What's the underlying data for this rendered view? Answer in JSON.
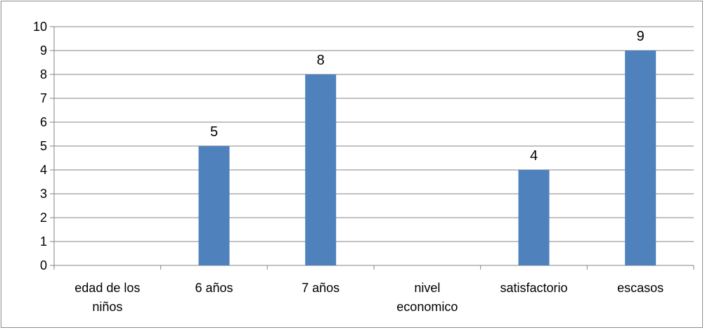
{
  "chart_data": {
    "type": "bar",
    "categories": [
      [
        "edad de los",
        "niños"
      ],
      [
        "6 años"
      ],
      [
        "7 años"
      ],
      [
        "nivel",
        "economico"
      ],
      [
        "satisfactorio"
      ],
      [
        "escasos"
      ]
    ],
    "values": [
      null,
      5,
      8,
      null,
      4,
      9
    ],
    "data_labels": [
      "",
      "5",
      "8",
      "",
      "4",
      "9"
    ],
    "title": "",
    "xlabel": "",
    "ylabel": "",
    "ylim": [
      0,
      10
    ],
    "yticks": [
      "0",
      "1",
      "2",
      "3",
      "4",
      "5",
      "6",
      "7",
      "8",
      "9",
      "10"
    ],
    "grid": true,
    "legend": "none",
    "colors": {
      "bar": "#4f81bd",
      "grid": "#868686",
      "axis": "#868686",
      "border": "#8c8c8c"
    }
  }
}
